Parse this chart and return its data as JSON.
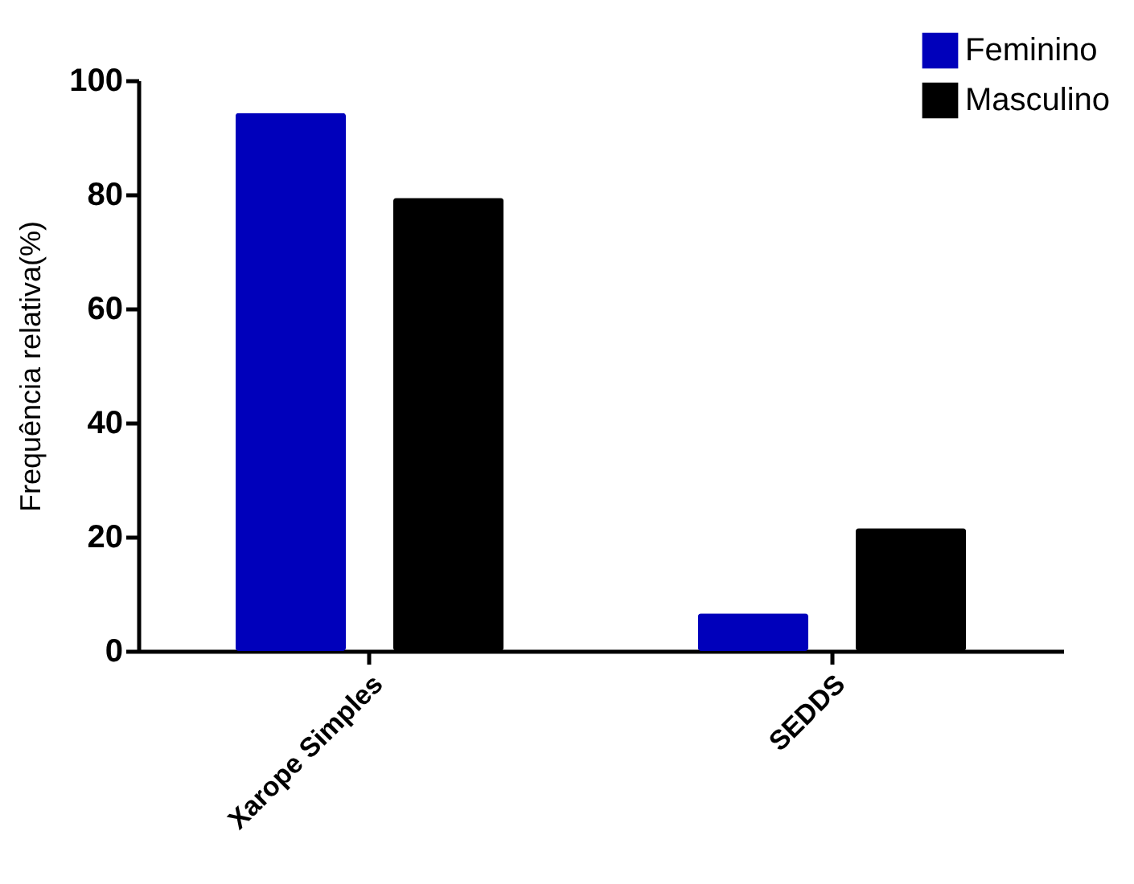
{
  "chart_data": {
    "type": "bar",
    "ylabel": "Frequência relativa(%)",
    "categories": [
      "Xarope Simples",
      "SEDDS"
    ],
    "series": [
      {
        "name": "Feminino",
        "color": "#0000bb",
        "values": [
          94.3,
          6.6
        ]
      },
      {
        "name": "Masculino",
        "color": "#000000",
        "values": [
          79.4,
          21.5
        ]
      }
    ],
    "ylim": [
      0,
      100
    ],
    "yticks": [
      0,
      20,
      40,
      60,
      80,
      100
    ],
    "grid": false,
    "legend": "top right"
  }
}
